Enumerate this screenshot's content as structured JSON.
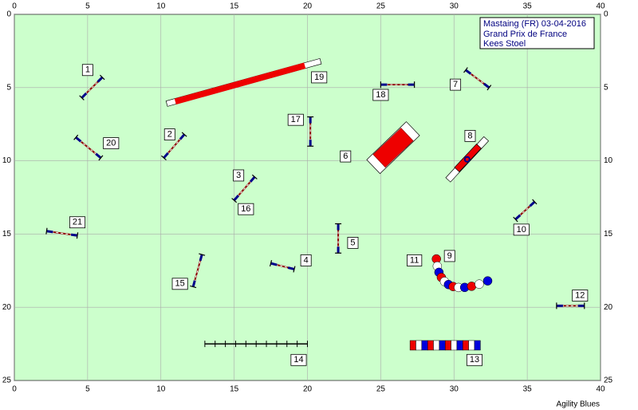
{
  "header": {
    "lines": [
      "Mastaing (FR) 03-04-2016",
      "Grand Prix de France",
      "Kees Stoel"
    ]
  },
  "axes": {
    "xticks": [
      0,
      5,
      10,
      15,
      20,
      25,
      30,
      35,
      40
    ],
    "yticks": [
      0,
      5,
      10,
      15,
      20,
      25
    ]
  },
  "obstacles": [
    {
      "label": "1"
    },
    {
      "label": "2"
    },
    {
      "label": "3"
    },
    {
      "label": "4"
    },
    {
      "label": "5"
    },
    {
      "label": "6"
    },
    {
      "label": "7"
    },
    {
      "label": "8"
    },
    {
      "label": "9"
    },
    {
      "label": "10"
    },
    {
      "label": "11"
    },
    {
      "label": "12"
    },
    {
      "label": "13"
    },
    {
      "label": "14"
    },
    {
      "label": "15"
    },
    {
      "label": "16"
    },
    {
      "label": "17"
    },
    {
      "label": "18"
    },
    {
      "label": "19"
    },
    {
      "label": "20"
    },
    {
      "label": "21"
    }
  ],
  "footer": "Agility Blues"
}
